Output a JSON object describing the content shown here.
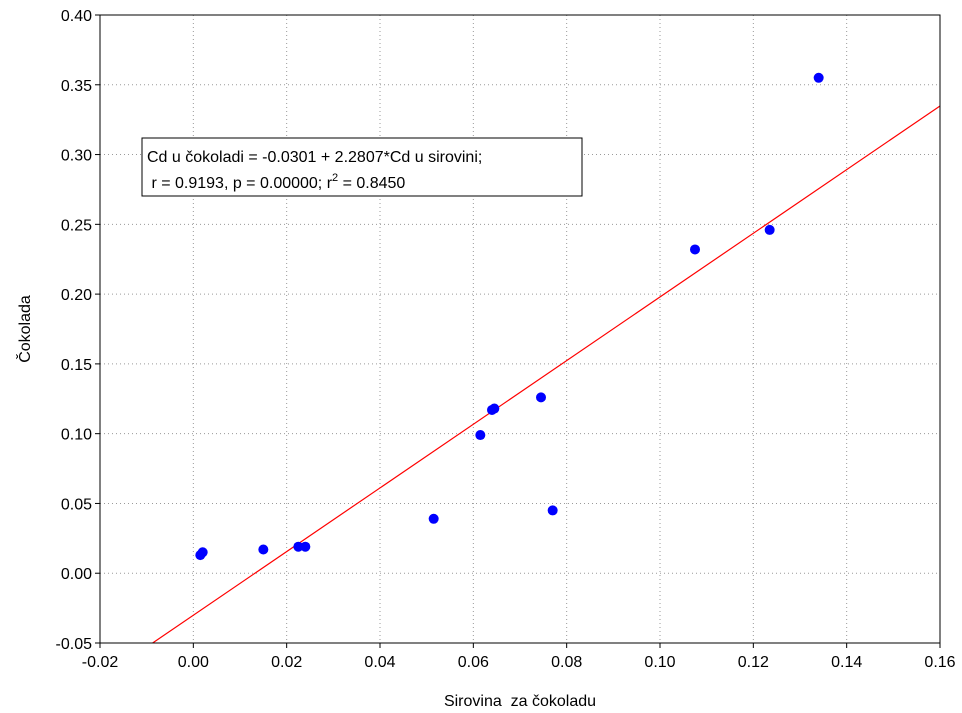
{
  "chart_data": {
    "type": "scatter",
    "xlabel": "Sirovina  za čokoladu",
    "ylabel": "Čokolada",
    "xlim": [
      -0.02,
      0.16
    ],
    "ylim": [
      -0.05,
      0.4
    ],
    "x_ticks": [
      "-0.02",
      "0.00",
      "0.02",
      "0.04",
      "0.06",
      "0.08",
      "0.10",
      "0.12",
      "0.14",
      "0.16"
    ],
    "y_ticks": [
      "-0.05",
      "0.00",
      "0.05",
      "0.10",
      "0.15",
      "0.20",
      "0.25",
      "0.30",
      "0.35",
      "0.40"
    ],
    "grid": "dotted",
    "points": [
      {
        "x": 0.0015,
        "y": 0.013
      },
      {
        "x": 0.002,
        "y": 0.015
      },
      {
        "x": 0.015,
        "y": 0.017
      },
      {
        "x": 0.0225,
        "y": 0.019
      },
      {
        "x": 0.024,
        "y": 0.019
      },
      {
        "x": 0.0515,
        "y": 0.039
      },
      {
        "x": 0.0615,
        "y": 0.099
      },
      {
        "x": 0.064,
        "y": 0.117
      },
      {
        "x": 0.0645,
        "y": 0.118
      },
      {
        "x": 0.0745,
        "y": 0.126
      },
      {
        "x": 0.077,
        "y": 0.045
      },
      {
        "x": 0.1075,
        "y": 0.232
      },
      {
        "x": 0.1235,
        "y": 0.246
      },
      {
        "x": 0.134,
        "y": 0.355
      }
    ],
    "point_color": "#0000ff",
    "regression": {
      "intercept": -0.0301,
      "slope": 2.2807,
      "color": "#ff0000"
    },
    "annotation": {
      "line1": "Cd u čokoladi = -0.0301 + 2.2807*Cd u sirovini;",
      "line2_prefix": " r = 0.9193, p = 0.00000; r",
      "line2_sup": "2",
      "line2_suffix": " = 0.8450"
    }
  }
}
